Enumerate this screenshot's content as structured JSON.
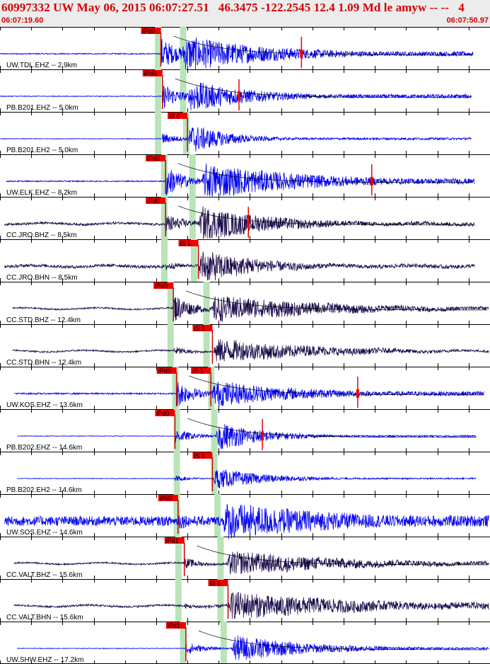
{
  "header": {
    "title": "60997332 UW May 06, 2015 06:07:27.51   46.3475 -122.2545 12.4 1.09 Md le amyw -- --   4",
    "time_start": "06:07:19.60",
    "time_end": "06:07:50.97"
  },
  "colors": {
    "header_bg": "#ececec",
    "header_text": "#d40000",
    "ehz_trace": "#0000ee",
    "broadband_trace": "#1a0a4a",
    "pick_box": "#ee0000",
    "pick_line": "#cc0000",
    "theoretical_band": "#b9e4b9",
    "amplitude_mark": "#ee0000",
    "tick": "#000000"
  },
  "chart_data": {
    "type": "seismogram",
    "time_axis": {
      "start": "06:07:19.60",
      "end": "06:07:50.97",
      "unit": "s",
      "duration": 31.37,
      "grid": false
    },
    "traces": [
      {
        "label": "UW.TDL.EHZ -- 2.9km",
        "kind": "ehz",
        "start": 0.0,
        "end": 30.3,
        "pre_amp": 0.03,
        "onset": 10.3,
        "peak_amp": 0.9,
        "s_onset": 11.6,
        "s_amp": 0.95,
        "decay": 6.0,
        "tail_amp": 0.12,
        "picks": [
          {
            "label": "iPd0",
            "t": 10.3,
            "type": "P"
          }
        ],
        "amp_marker": 19.3,
        "coda_curve": true,
        "band_p": 10.1,
        "band_s": 11.7
      },
      {
        "label": "PB.B201.EHZ -- 5.0km",
        "kind": "ehz",
        "start": 0.0,
        "end": 30.2,
        "pre_amp": 0.02,
        "onset": 10.4,
        "peak_amp": 0.7,
        "s_onset": 12.0,
        "s_amp": 0.85,
        "decay": 4.0,
        "tail_amp": 0.1,
        "picks": [
          {
            "label": "iPd0",
            "t": 10.4,
            "type": "P"
          }
        ],
        "amp_marker": 15.3,
        "coda_curve": true,
        "band_p": 10.1,
        "band_s": 11.7
      },
      {
        "label": "PB.B201.EH2 -- 5.0km",
        "kind": "ehz",
        "start": 0.0,
        "end": 30.2,
        "pre_amp": 0.015,
        "onset": 10.4,
        "peak_amp": 0.3,
        "s_onset": 12.0,
        "s_amp": 0.8,
        "decay": 2.5,
        "tail_amp": 0.06,
        "picks": [
          {
            "label": "iS 0",
            "t": 12.0,
            "type": "S"
          }
        ],
        "amp_marker": null,
        "coda_curve": false,
        "band_p": 10.1,
        "band_s": 11.9
      },
      {
        "label": "UW.ELK.EHZ -- 8.2km",
        "kind": "ehz",
        "start": 0.4,
        "end": 30.4,
        "pre_amp": 0.03,
        "onset": 10.6,
        "peak_amp": 0.9,
        "s_onset": 12.9,
        "s_amp": 0.95,
        "decay": 7.0,
        "tail_amp": 0.15,
        "picks": [
          {
            "label": "iPd0",
            "t": 10.6,
            "type": "P"
          }
        ],
        "amp_marker": 23.8,
        "coda_curve": true,
        "band_p": 10.5,
        "band_s": 12.3
      },
      {
        "label": "CC.JRO.BHZ -- 8.5km",
        "kind": "bb",
        "start": 0.3,
        "end": 30.4,
        "pre_amp": 0.06,
        "onset": 10.6,
        "peak_amp": 0.6,
        "s_onset": 12.7,
        "s_amp": 0.9,
        "decay": 5.0,
        "tail_amp": 0.1,
        "picks": [
          {
            "label": "iPd0",
            "t": 10.6,
            "type": "P"
          }
        ],
        "amp_marker": 15.9,
        "coda_curve": true,
        "band_p": 10.5,
        "band_s": 12.3
      },
      {
        "label": "CC.JRO.BHN -- 8.5km",
        "kind": "bb",
        "start": 0.3,
        "end": 30.4,
        "pre_amp": 0.08,
        "onset": 10.6,
        "peak_amp": 0.25,
        "s_onset": 12.7,
        "s_amp": 0.9,
        "decay": 4.0,
        "tail_amp": 0.1,
        "picks": [
          {
            "label": "iS 1",
            "t": 12.7,
            "type": "S"
          }
        ],
        "amp_marker": null,
        "coda_curve": false,
        "band_p": 10.5,
        "band_s": 12.4
      },
      {
        "label": "CC.STD.BHZ -- 12.4km",
        "kind": "bb",
        "start": 0.8,
        "end": 31.3,
        "pre_amp": 0.04,
        "onset": 11.1,
        "peak_amp": 0.8,
        "s_onset": 13.5,
        "s_amp": 0.7,
        "decay": 8.0,
        "tail_amp": 0.08,
        "picks": [
          {
            "label": "iPd0",
            "t": 11.1,
            "type": "P"
          }
        ],
        "amp_marker": null,
        "coda_curve": true,
        "band_p": 10.9,
        "band_s": 13.2
      },
      {
        "label": "CC.STD.BHN -- 12.4km",
        "kind": "bb",
        "start": 0.8,
        "end": 31.3,
        "pre_amp": 0.04,
        "onset": 11.1,
        "peak_amp": 0.25,
        "s_onset": 13.6,
        "s_amp": 0.65,
        "decay": 7.0,
        "tail_amp": 0.06,
        "picks": [
          {
            "label": "iS 1",
            "t": 13.6,
            "type": "S"
          }
        ],
        "amp_marker": null,
        "coda_curve": false,
        "band_p": 10.9,
        "band_s": 13.2
      },
      {
        "label": "UW.KOS.EHZ -- 13.6km",
        "kind": "ehz",
        "start": 0.9,
        "end": 31.0,
        "pre_amp": 0.04,
        "onset": 11.3,
        "peak_amp": 0.75,
        "s_onset": 13.5,
        "s_amp": 0.7,
        "decay": 6.0,
        "tail_amp": 0.12,
        "picks": [
          {
            "label": "iPd0",
            "t": 11.3,
            "type": "P"
          },
          {
            "label": "iS 1",
            "t": 13.5,
            "type": "S"
          }
        ],
        "amp_marker": 22.9,
        "coda_curve": true,
        "band_p": 11.2,
        "band_s": 13.5
      },
      {
        "label": "PB.B202.EHZ -- 14.6km",
        "kind": "ehz",
        "start": 1.1,
        "end": 30.5,
        "pre_amp": 0.015,
        "onset": 11.2,
        "peak_amp": 0.4,
        "s_onset": 13.8,
        "s_amp": 0.75,
        "decay": 3.0,
        "tail_amp": 0.04,
        "picks": [
          {
            "label": "iPd0",
            "t": 11.2,
            "type": "P"
          }
        ],
        "amp_marker": 16.8,
        "coda_curve": true,
        "band_p": 11.3,
        "band_s": 13.7
      },
      {
        "label": "PB.B202.EH2 -- 14.6km",
        "kind": "ehz",
        "start": 1.1,
        "end": 30.5,
        "pre_amp": 0.015,
        "onset": 11.2,
        "peak_amp": 0.15,
        "s_onset": 13.6,
        "s_amp": 0.55,
        "decay": 3.5,
        "tail_amp": 0.04,
        "picks": [
          {
            "label": "iS 1",
            "t": 13.6,
            "type": "S"
          }
        ],
        "amp_marker": null,
        "coda_curve": false,
        "band_p": 11.3,
        "band_s": 13.7
      },
      {
        "label": "UW.SOS.EHZ -- 14.6km",
        "kind": "ehz",
        "start": 0.3,
        "end": 31.3,
        "pre_amp": 0.25,
        "onset": 11.4,
        "peak_amp": 0.5,
        "s_onset": 14.2,
        "s_amp": 1.0,
        "decay": 9.0,
        "tail_amp": 0.3,
        "picks": [
          {
            "label": "iPd0",
            "t": 11.4,
            "type": "P"
          }
        ],
        "amp_marker": null,
        "coda_curve": false,
        "band_p": 11.3,
        "band_s": 13.9
      },
      {
        "label": "CC.VALT.BHZ -- 15.6km",
        "kind": "bb",
        "start": 0.9,
        "end": 31.3,
        "pre_amp": 0.04,
        "onset": 11.8,
        "peak_amp": 0.3,
        "s_onset": 14.5,
        "s_amp": 0.65,
        "decay": 8.0,
        "tail_amp": 0.1,
        "picks": [
          {
            "label": "iPd1",
            "t": 11.8,
            "type": "P"
          }
        ],
        "amp_marker": null,
        "coda_curve": true,
        "band_p": 11.4,
        "band_s": 14.1
      },
      {
        "label": "CC.VALT.BHN -- 15.6km",
        "kind": "bb",
        "start": 0.9,
        "end": 31.3,
        "pre_amp": 0.05,
        "onset": 11.8,
        "peak_amp": 0.15,
        "s_onset": 14.6,
        "s_amp": 0.75,
        "decay": 9.0,
        "tail_amp": 0.18,
        "picks": [
          {
            "label": "iS 1",
            "t": 14.6,
            "type": "S"
          }
        ],
        "amp_marker": null,
        "coda_curve": false,
        "band_p": 11.4,
        "band_s": 14.1
      },
      {
        "label": "UW.SHW.EHZ -- 17.2km",
        "kind": "ehz",
        "start": 1.1,
        "end": 31.3,
        "pre_amp": 0.015,
        "onset": 11.9,
        "peak_amp": 0.35,
        "s_onset": 14.8,
        "s_amp": 0.7,
        "decay": 5.0,
        "tail_amp": 0.05,
        "picks": [
          {
            "label": "iPd1",
            "t": 11.9,
            "type": "P"
          }
        ],
        "amp_marker": null,
        "coda_curve": true,
        "band_p": 11.7,
        "band_s": 14.3
      }
    ]
  }
}
